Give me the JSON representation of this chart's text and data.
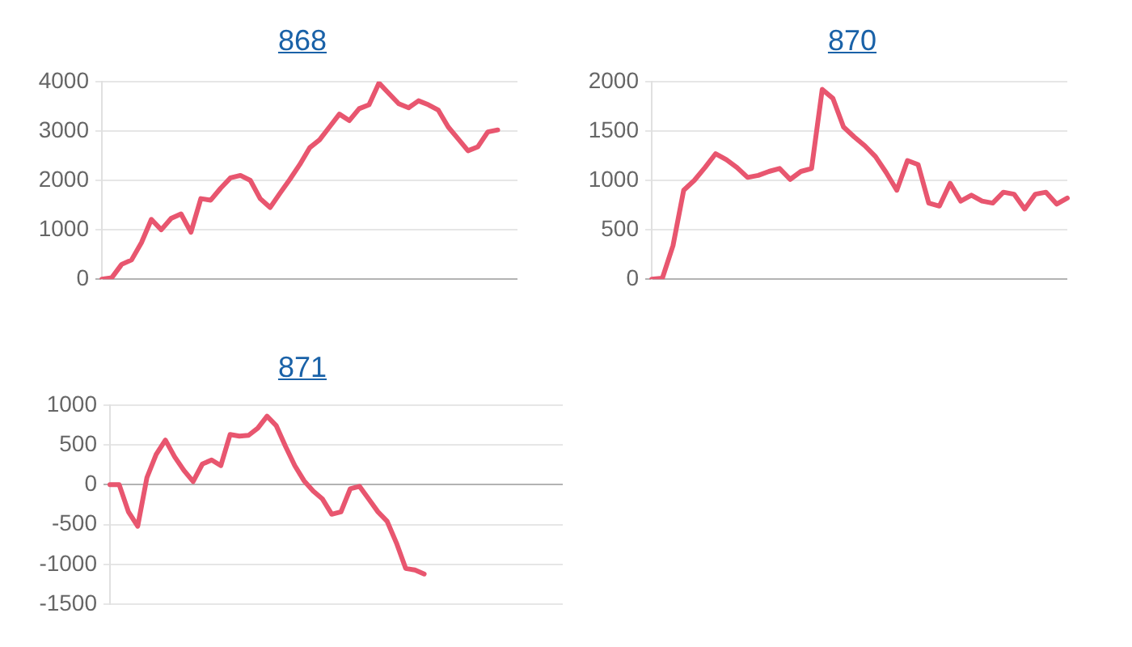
{
  "chart_data": [
    {
      "type": "line",
      "title": "868",
      "categories": [
        null,
        null,
        null,
        null,
        null,
        null,
        null,
        null,
        null,
        null,
        null,
        null,
        null,
        null,
        null,
        null,
        null,
        null,
        null,
        null,
        null,
        null,
        null,
        null,
        null,
        null,
        null,
        null,
        null,
        null,
        null,
        null,
        null,
        null,
        null,
        null,
        null,
        null,
        null,
        null,
        null,
        null,
        null
      ],
      "values": [
        0,
        30,
        300,
        390,
        740,
        1210,
        1000,
        1230,
        1320,
        950,
        1630,
        1600,
        1840,
        2050,
        2100,
        2000,
        1630,
        1450,
        1740,
        2020,
        2320,
        2660,
        2820,
        3080,
        3340,
        3210,
        3450,
        3530,
        3970,
        3760,
        3550,
        3470,
        3610,
        3530,
        3420,
        3080,
        2840,
        2600,
        2680,
        2980,
        3020,
        null,
        null
      ],
      "color": "#e8566f",
      "ylim": [
        0,
        4000
      ],
      "yticks": [
        0,
        1000,
        2000,
        3000,
        4000
      ],
      "grid": "y",
      "tick_labels": "y",
      "marker": "none",
      "line_style": "solid"
    },
    {
      "type": "line",
      "title": "870",
      "categories": [
        null,
        null,
        null,
        null,
        null,
        null,
        null,
        null,
        null,
        null,
        null,
        null,
        null,
        null,
        null,
        null,
        null,
        null,
        null,
        null,
        null,
        null,
        null,
        null,
        null,
        null,
        null,
        null,
        null,
        null,
        null,
        null,
        null,
        null,
        null,
        null,
        null,
        null,
        null,
        null
      ],
      "values": [
        0,
        10,
        340,
        900,
        1000,
        1130,
        1270,
        1210,
        1130,
        1030,
        1050,
        1090,
        1120,
        1010,
        1090,
        1120,
        1920,
        1830,
        1540,
        1440,
        1350,
        1240,
        1080,
        900,
        1200,
        1160,
        770,
        740,
        970,
        790,
        850,
        790,
        770,
        880,
        860,
        710,
        860,
        880,
        760,
        820
      ],
      "color": "#e8566f",
      "ylim": [
        0,
        2000
      ],
      "yticks": [
        0,
        500,
        1000,
        1500,
        2000
      ],
      "grid": "y",
      "tick_labels": "y",
      "marker": "none",
      "line_style": "solid"
    },
    {
      "type": "line",
      "title": "871",
      "categories": [
        null,
        null,
        null,
        null,
        null,
        null,
        null,
        null,
        null,
        null,
        null,
        null,
        null,
        null,
        null,
        null,
        null,
        null,
        null,
        null,
        null,
        null,
        null,
        null,
        null,
        null,
        null,
        null,
        null,
        null,
        null,
        null,
        null,
        null,
        null,
        null,
        null,
        null,
        null,
        null,
        null,
        null,
        null,
        null,
        null,
        null,
        null,
        null,
        null,
        null
      ],
      "values": [
        0,
        0,
        -340,
        -520,
        90,
        380,
        560,
        350,
        180,
        40,
        260,
        310,
        240,
        630,
        610,
        620,
        710,
        860,
        740,
        480,
        240,
        50,
        -80,
        -180,
        -370,
        -340,
        -50,
        -20,
        -180,
        -340,
        -460,
        -730,
        -1050,
        -1070,
        -1120,
        null,
        null,
        null,
        null,
        null,
        null,
        null,
        null,
        null,
        null,
        null,
        null,
        null,
        null,
        null
      ],
      "color": "#e8566f",
      "ylim": [
        -1500,
        1000
      ],
      "yticks": [
        -1500,
        -1000,
        -500,
        0,
        500,
        1000
      ],
      "grid": "y",
      "tick_labels": "y",
      "marker": "none",
      "line_style": "solid"
    }
  ]
}
